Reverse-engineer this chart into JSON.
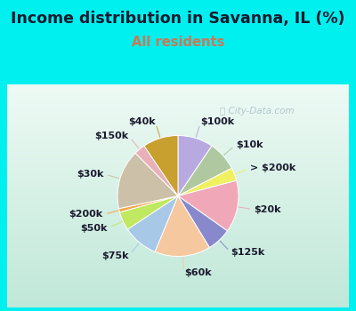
{
  "title": "Income distribution in Savanna, IL (%)",
  "subtitle": "All residents",
  "title_color": "#1a1a2e",
  "subtitle_color": "#cc7755",
  "bg_color": "#00f0f0",
  "chart_bg_top": "#ffffff",
  "chart_bg_bottom": "#c8e8d8",
  "watermark": "City-Data.com",
  "labels": [
    "$100k",
    "$10k",
    "> $200k",
    "$20k",
    "$125k",
    "$60k",
    "$75k",
    "$50k",
    "$200k",
    "$30k",
    "$150k",
    "$40k"
  ],
  "values": [
    9.5,
    8.0,
    3.5,
    14.0,
    6.5,
    15.0,
    9.5,
    5.0,
    1.0,
    16.0,
    3.0,
    9.5
  ],
  "colors": [
    "#b8aae0",
    "#b0c8a0",
    "#f0f060",
    "#f0a8b8",
    "#8888cc",
    "#f5c8a0",
    "#a8c8e8",
    "#c0e860",
    "#f0a848",
    "#ccc0a8",
    "#e8b0b8",
    "#c8a030"
  ],
  "label_fontsize": 8.0,
  "title_fontsize": 12.5,
  "subtitle_fontsize": 10.5
}
